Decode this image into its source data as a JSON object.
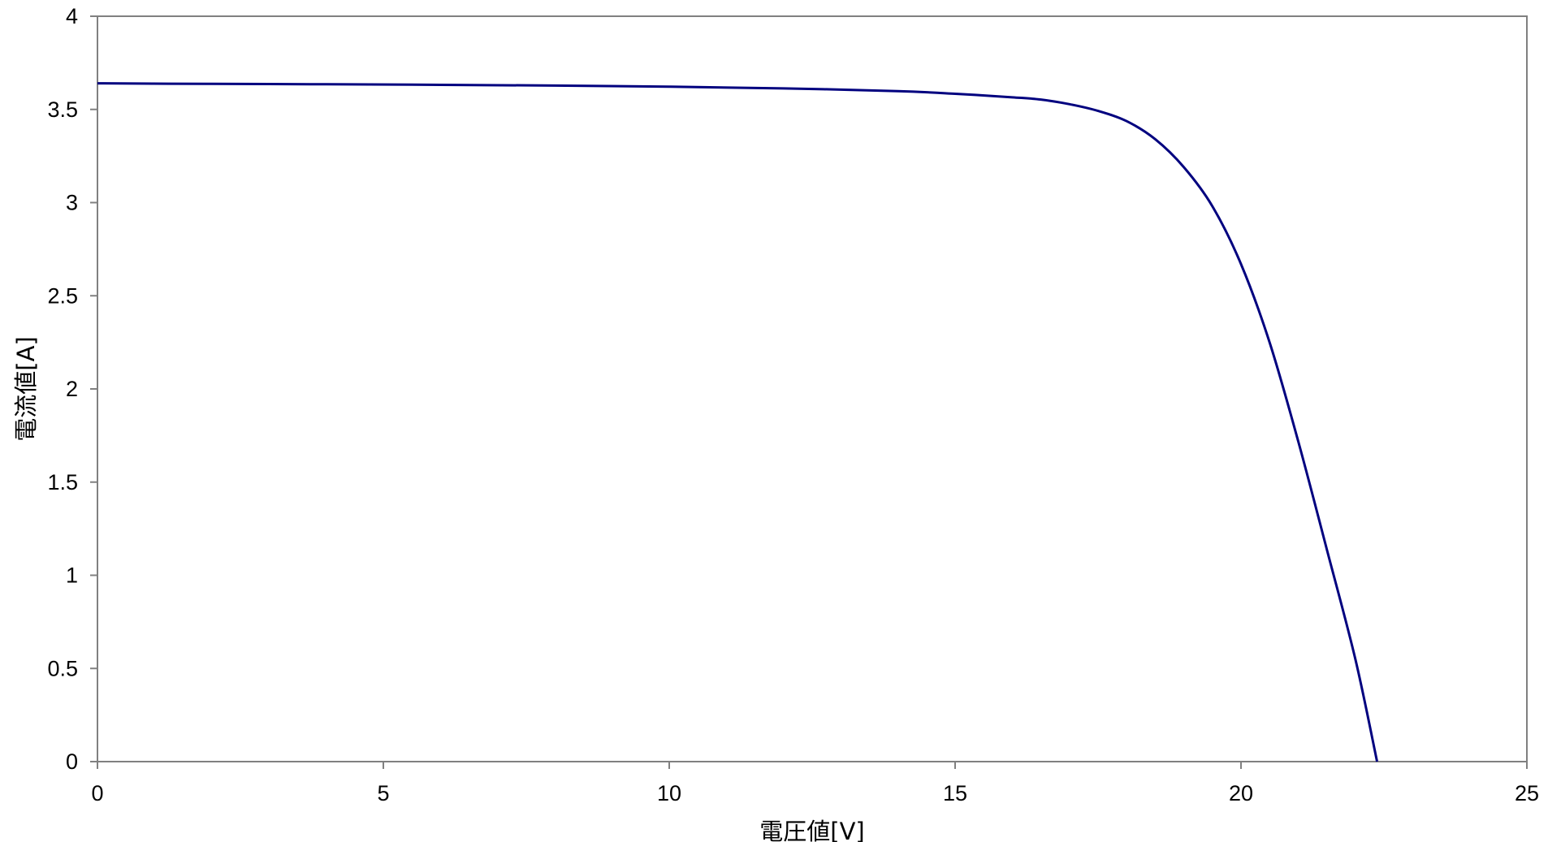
{
  "chart_data": {
    "type": "line",
    "title": "",
    "xlabel": "電圧値[V]",
    "ylabel": "電流値[A]",
    "xlim": [
      0,
      25
    ],
    "ylim": [
      0,
      4
    ],
    "xticks": [
      0,
      5,
      10,
      15,
      20,
      25
    ],
    "yticks": [
      0,
      0.5,
      1,
      1.5,
      2,
      2.5,
      3,
      3.5,
      4
    ],
    "grid": false,
    "legend": "none",
    "colors": {
      "series": "#00007f",
      "axes": "#808080",
      "background": "#ffffff"
    },
    "series": [
      {
        "x": [
          0,
          2,
          4,
          6,
          8,
          10,
          12,
          14,
          15,
          16,
          16.5,
          17,
          17.5,
          18,
          18.5,
          19,
          19.5,
          20,
          20.5,
          21,
          21.5,
          22,
          22.38
        ],
        "y": [
          3.64,
          3.637,
          3.635,
          3.632,
          3.628,
          3.622,
          3.613,
          3.598,
          3.584,
          3.565,
          3.553,
          3.528,
          3.492,
          3.437,
          3.34,
          3.19,
          2.98,
          2.67,
          2.25,
          1.72,
          1.14,
          0.55,
          0
        ]
      }
    ]
  }
}
